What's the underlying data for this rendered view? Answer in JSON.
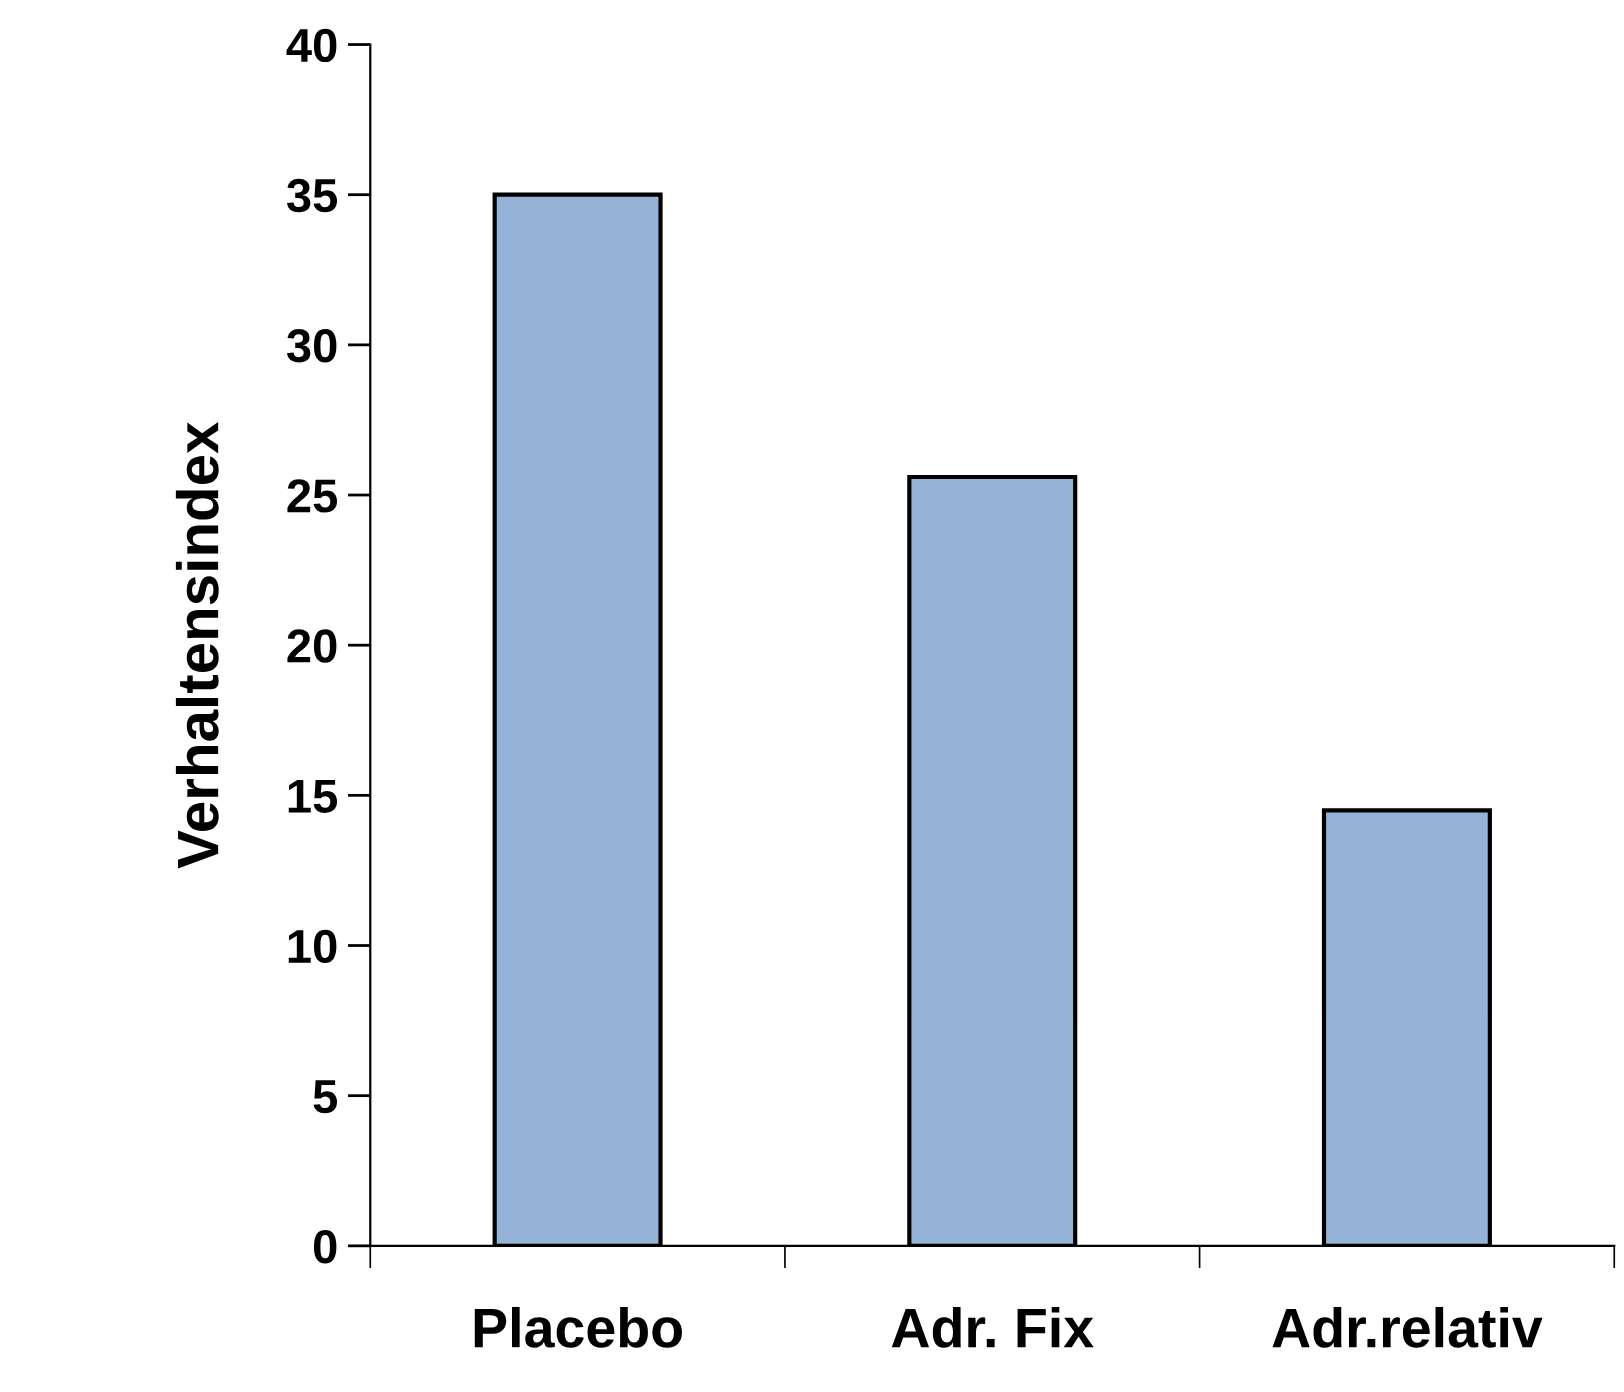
{
  "chart_data": {
    "type": "bar",
    "ylabel": "Verhaltensindex",
    "categories": [
      "Placebo",
      "Adr. Fix",
      "Adr.relativ"
    ],
    "values": [
      35,
      25.6,
      14.5
    ],
    "color": "#95b3d7",
    "ylim": [
      0,
      40
    ],
    "yticks": [
      0,
      5,
      10,
      15,
      20,
      25,
      30,
      35,
      40
    ],
    "grid": false,
    "legend": false
  }
}
